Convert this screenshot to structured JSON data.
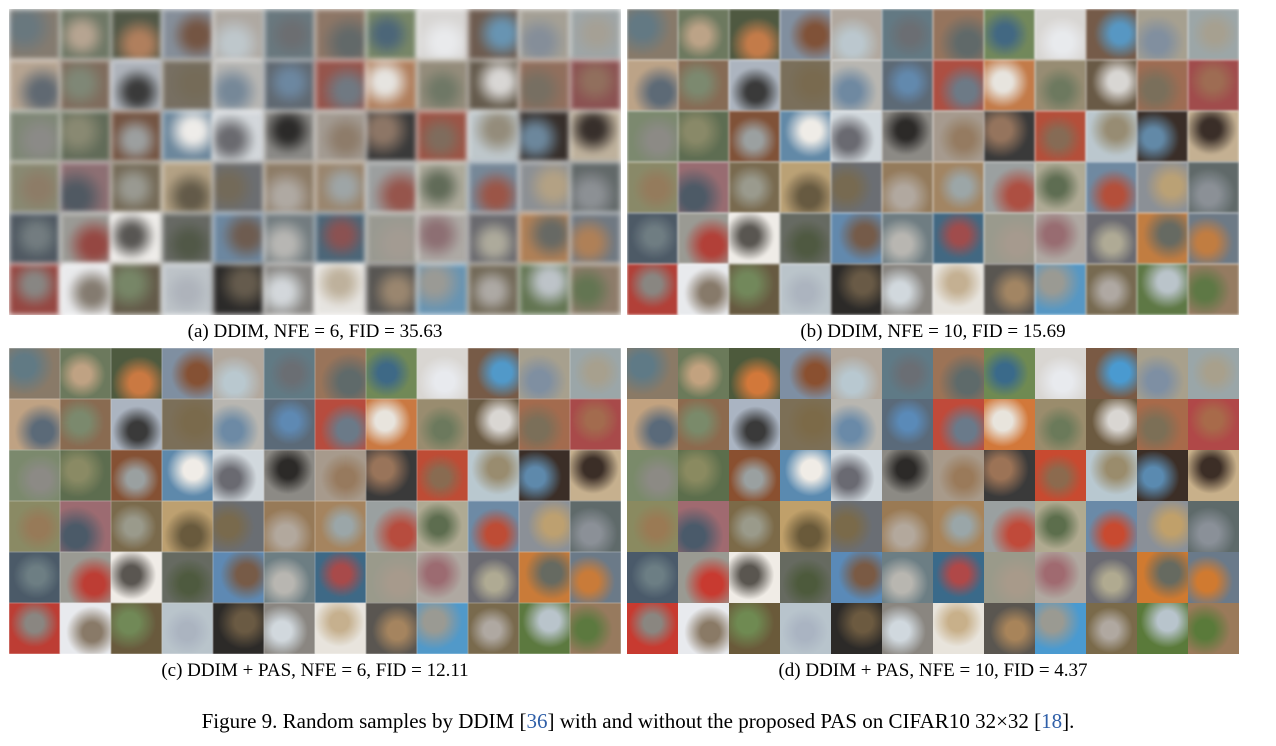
{
  "panels": [
    {
      "id": "a",
      "caption": "(a) DDIM, NFE = 6, FID = 35.63"
    },
    {
      "id": "b",
      "caption": "(b) DDIM, NFE = 10, FID = 15.69"
    },
    {
      "id": "c",
      "caption": "(c) DDIM + PAS, NFE = 6, FID = 12.11"
    },
    {
      "id": "d",
      "caption": "(d) DDIM + PAS, NFE = 10, FID = 4.37"
    }
  ],
  "figure_caption": {
    "prefix": "Figure 9. Random samples by DDIM [",
    "ref1": "36",
    "middle": "] with and without the proposed PAS on CIFAR10 32×32 [",
    "ref2": "18",
    "suffix": "]."
  },
  "grid": {
    "rows": 6,
    "cols": 12
  },
  "colors": {
    "palette": [
      "#8a7a66",
      "#6b7a5a",
      "#4d5a3c",
      "#7e8fa3",
      "#b3a89c",
      "#5f7a86",
      "#9c7356",
      "#6f8a52",
      "#d9d6d2",
      "#7a5a44",
      "#a8a08c",
      "#9aa6a8",
      "#c2a27f",
      "#8c6a4e",
      "#aab4c2",
      "#7c6f56",
      "#b8b6b0",
      "#5a6a7a",
      "#c04a3a",
      "#d2783a",
      "#9a8c6c",
      "#6c5a40",
      "#a86a4a",
      "#b04848",
      "#7a8a6a",
      "#5c6e4c",
      "#8a5030",
      "#5a8ab0",
      "#d0d8de",
      "#8c8a84",
      "#a89a8a",
      "#3a3a3a",
      "#c84a30",
      "#b8c8d0",
      "#3c2e26",
      "#c8b08a",
      "#8a8a60",
      "#a06a70",
      "#7c6a48",
      "#c0a06a",
      "#6a6e74",
      "#9a7a54",
      "#a8845a",
      "#9aa0a0",
      "#b0aa90",
      "#6a8aa8",
      "#8a9098",
      "#5e6a6a",
      "#4a5a6a",
      "#9a9a92",
      "#f0ece6",
      "#666a60",
      "#5a8ab8",
      "#6c7e84",
      "#3a6a8a",
      "#9a9a8a",
      "#b0a8a0",
      "#6a6a72",
      "#d07a30",
      "#6a7a8a",
      "#c83a30",
      "#e8eaee",
      "#6a5a3a",
      "#b8c4cc",
      "#2c2a28",
      "#8a8680",
      "#e8e4dc",
      "#5a5650",
      "#4a9ad0",
      "#7a6a4a",
      "#5a7a3a",
      "#9a7a5a"
    ]
  }
}
